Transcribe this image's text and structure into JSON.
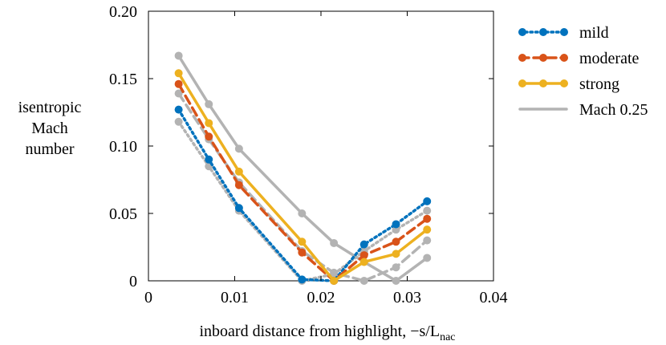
{
  "chart_data": {
    "type": "line",
    "ylabel_lines": [
      "isentropic",
      "Mach",
      "number"
    ],
    "xlabel": "inboard distance from highlight, −s/L",
    "xlabel_sub": "nac",
    "xlim": [
      0,
      0.04
    ],
    "ylim": [
      0,
      0.2
    ],
    "xticks": [
      0,
      0.01,
      0.02,
      0.03,
      0.04
    ],
    "xtick_labels": [
      "0",
      "0.01",
      "0.02",
      "0.03",
      "0.04"
    ],
    "yticks": [
      0,
      0.05,
      0.1,
      0.15,
      0.2
    ],
    "ytick_labels": [
      "0",
      "0.05",
      "0.10",
      "0.15",
      "0.20"
    ],
    "legend_position": "right",
    "series": [
      {
        "name": "Mach 0.25",
        "color": "#b3b3b3",
        "style": "solid",
        "markers": true,
        "x": [
          0.0035,
          0.007,
          0.0105,
          0.0178,
          0.0215,
          0.025,
          0.0287,
          0.0323
        ],
        "y": [
          0.167,
          0.131,
          0.098,
          0.05,
          0.028,
          0.014,
          0.0,
          0.017
        ]
      },
      {
        "name": "",
        "color": "#b3b3b3",
        "style": "dashed",
        "markers": true,
        "x": [
          0.0035,
          0.007,
          0.0105,
          0.0178,
          0.0215,
          0.025,
          0.0287,
          0.0323
        ],
        "y": [
          0.139,
          0.105,
          0.073,
          0.022,
          0.006,
          0.0,
          0.01,
          0.03
        ]
      },
      {
        "name": "",
        "color": "#b3b3b3",
        "style": "dotted",
        "markers": true,
        "x": [
          0.0035,
          0.007,
          0.0105,
          0.0178,
          0.0215,
          0.025,
          0.0287,
          0.0323
        ],
        "y": [
          0.118,
          0.085,
          0.052,
          0.0,
          0.005,
          0.022,
          0.038,
          0.052
        ]
      },
      {
        "name": "mild",
        "color": "#0072bd",
        "style": "dotted",
        "markers": true,
        "x": [
          0.0035,
          0.007,
          0.0105,
          0.0178,
          0.0215,
          0.025,
          0.0287,
          0.0323
        ],
        "y": [
          0.127,
          0.09,
          0.054,
          0.001,
          0.0,
          0.027,
          0.042,
          0.059
        ]
      },
      {
        "name": "moderate",
        "color": "#d95319",
        "style": "dashed",
        "markers": true,
        "x": [
          0.0035,
          0.007,
          0.0105,
          0.0178,
          0.0215,
          0.025,
          0.0287,
          0.0323
        ],
        "y": [
          0.146,
          0.107,
          0.071,
          0.021,
          0.0,
          0.019,
          0.029,
          0.046
        ]
      },
      {
        "name": "strong",
        "color": "#edb120",
        "style": "solid",
        "markers": true,
        "x": [
          0.0035,
          0.007,
          0.0105,
          0.0178,
          0.0215,
          0.025,
          0.0287,
          0.0323
        ],
        "y": [
          0.154,
          0.117,
          0.081,
          0.029,
          0.0,
          0.014,
          0.02,
          0.038
        ]
      }
    ],
    "legend": [
      {
        "label": "mild",
        "color": "#0072bd",
        "style": "dotted",
        "markers": true
      },
      {
        "label": "moderate",
        "color": "#d95319",
        "style": "dashed",
        "markers": true
      },
      {
        "label": "strong",
        "color": "#edb120",
        "style": "solid",
        "markers": true
      },
      {
        "label": "Mach 0.25",
        "color": "#b3b3b3",
        "style": "solid",
        "markers": false
      }
    ]
  }
}
